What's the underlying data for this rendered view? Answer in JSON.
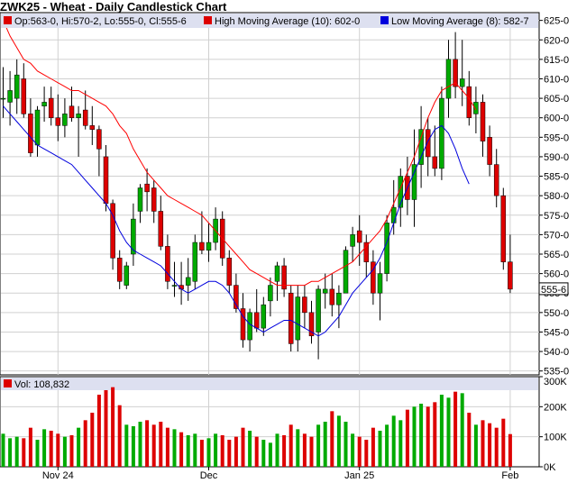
{
  "chart_data": {
    "type": "candlestick",
    "title": "ZWK25 - Wheat - Daily Candlestick Chart",
    "legend": {
      "ohlc": "Op:563-0, Hi:570-2, Lo:555-0, Cl:555-6",
      "high_ma": "High Moving Average (10): 602-0",
      "low_ma": "Low Moving Average (8): 582-7",
      "volume": "Vol: 108,832"
    },
    "colors": {
      "up": "#00aa00",
      "down": "#dd0000",
      "high_ma": "#ff0000",
      "low_ma": "#0000dd",
      "grid": "#d0d0d0",
      "panel": "#ffffff",
      "legend_bg": "#dde0f0"
    },
    "last_price_label": "555-6",
    "price_axis": {
      "min": 534,
      "max": 627,
      "ticks": [
        "535-0",
        "540-0",
        "545-0",
        "550-0",
        "555-0",
        "560-0",
        "565-0",
        "570-0",
        "575-0",
        "580-0",
        "585-0",
        "590-0",
        "595-0",
        "600-0",
        "605-0",
        "610-0",
        "615-0",
        "620-0",
        "625-0"
      ]
    },
    "volume_axis": {
      "min": 0,
      "max": 300000,
      "ticks": [
        {
          "v": 0,
          "label": "0K"
        },
        {
          "v": 100000,
          "label": "100K"
        },
        {
          "v": 200000,
          "label": "200K"
        },
        {
          "v": 300000,
          "label": "300K"
        }
      ]
    },
    "x_labels": [
      {
        "index": 8,
        "label": "Nov 24"
      },
      {
        "index": 30,
        "label": "Dec"
      },
      {
        "index": 52,
        "label": "Jan 25"
      },
      {
        "index": 74,
        "label": "Feb"
      }
    ],
    "bars": [
      {
        "o": 605,
        "h": 613,
        "l": 600,
        "c": 605,
        "v": 110000
      },
      {
        "o": 604,
        "h": 612,
        "l": 598,
        "c": 607,
        "v": 95000
      },
      {
        "o": 605,
        "h": 615,
        "l": 601,
        "c": 611,
        "v": 100000
      },
      {
        "o": 610,
        "h": 614,
        "l": 600,
        "c": 601,
        "v": 95000
      },
      {
        "o": 601,
        "h": 605,
        "l": 590,
        "c": 591,
        "v": 130000
      },
      {
        "o": 593,
        "h": 603,
        "l": 590,
        "c": 602,
        "v": 90000
      },
      {
        "o": 603,
        "h": 608,
        "l": 599,
        "c": 604,
        "v": 125000
      },
      {
        "o": 605,
        "h": 608,
        "l": 598,
        "c": 600,
        "v": 120000
      },
      {
        "o": 600,
        "h": 606,
        "l": 594,
        "c": 598,
        "v": 110000
      },
      {
        "o": 598,
        "h": 605,
        "l": 595,
        "c": 601,
        "v": 100000
      },
      {
        "o": 603,
        "h": 608,
        "l": 599,
        "c": 600,
        "v": 105000
      },
      {
        "o": 600,
        "h": 603,
        "l": 590,
        "c": 601,
        "v": 130000
      },
      {
        "o": 602,
        "h": 607,
        "l": 597,
        "c": 598,
        "v": 155000
      },
      {
        "o": 598,
        "h": 603,
        "l": 593,
        "c": 597,
        "v": 180000
      },
      {
        "o": 597,
        "h": 598,
        "l": 585,
        "c": 592,
        "v": 240000
      },
      {
        "o": 590,
        "h": 593,
        "l": 576,
        "c": 578,
        "v": 255000
      },
      {
        "o": 578,
        "h": 579,
        "l": 561,
        "c": 564,
        "v": 265000
      },
      {
        "o": 564,
        "h": 566,
        "l": 556,
        "c": 558,
        "v": 205000
      },
      {
        "o": 557,
        "h": 563,
        "l": 556,
        "c": 562,
        "v": 140000
      },
      {
        "o": 565,
        "h": 578,
        "l": 562,
        "c": 574,
        "v": 135000
      },
      {
        "o": 576,
        "h": 583,
        "l": 573,
        "c": 582,
        "v": 150000
      },
      {
        "o": 583,
        "h": 587,
        "l": 576,
        "c": 581,
        "v": 155000
      },
      {
        "o": 582,
        "h": 584,
        "l": 573,
        "c": 576,
        "v": 140000
      },
      {
        "o": 576,
        "h": 580,
        "l": 566,
        "c": 567,
        "v": 150000
      },
      {
        "o": 567,
        "h": 570,
        "l": 556,
        "c": 558,
        "v": 130000
      },
      {
        "o": 557,
        "h": 563,
        "l": 554,
        "c": 557,
        "v": 125000
      },
      {
        "o": 557,
        "h": 563,
        "l": 552,
        "c": 556,
        "v": 115000
      },
      {
        "o": 557,
        "h": 564,
        "l": 553,
        "c": 559,
        "v": 105000
      },
      {
        "o": 558,
        "h": 570,
        "l": 556,
        "c": 568,
        "v": 110000
      },
      {
        "o": 568,
        "h": 576,
        "l": 565,
        "c": 566,
        "v": 90000
      },
      {
        "o": 566,
        "h": 573,
        "l": 563,
        "c": 568,
        "v": 95000
      },
      {
        "o": 568,
        "h": 577,
        "l": 566,
        "c": 574,
        "v": 110000
      },
      {
        "o": 574,
        "h": 576,
        "l": 562,
        "c": 564,
        "v": 105000
      },
      {
        "o": 564,
        "h": 566,
        "l": 555,
        "c": 557,
        "v": 90000
      },
      {
        "o": 557,
        "h": 560,
        "l": 550,
        "c": 551,
        "v": 100000
      },
      {
        "o": 551,
        "h": 555,
        "l": 541,
        "c": 543,
        "v": 130000
      },
      {
        "o": 543,
        "h": 551,
        "l": 540,
        "c": 550,
        "v": 120000
      },
      {
        "o": 550,
        "h": 556,
        "l": 545,
        "c": 546,
        "v": 100000
      },
      {
        "o": 546,
        "h": 554,
        "l": 544,
        "c": 552,
        "v": 90000
      },
      {
        "o": 553,
        "h": 559,
        "l": 549,
        "c": 557,
        "v": 80000
      },
      {
        "o": 558,
        "h": 563,
        "l": 553,
        "c": 562,
        "v": 110000
      },
      {
        "o": 562,
        "h": 564,
        "l": 554,
        "c": 556,
        "v": 105000
      },
      {
        "o": 555,
        "h": 557,
        "l": 540,
        "c": 542,
        "v": 140000
      },
      {
        "o": 543,
        "h": 557,
        "l": 540,
        "c": 554,
        "v": 125000
      },
      {
        "o": 554,
        "h": 557,
        "l": 546,
        "c": 550,
        "v": 110000
      },
      {
        "o": 550,
        "h": 553,
        "l": 542,
        "c": 544,
        "v": 100000
      },
      {
        "o": 545,
        "h": 557,
        "l": 538,
        "c": 556,
        "v": 140000
      },
      {
        "o": 555,
        "h": 560,
        "l": 551,
        "c": 556,
        "v": 150000
      },
      {
        "o": 556,
        "h": 560,
        "l": 549,
        "c": 552,
        "v": 185000
      },
      {
        "o": 552,
        "h": 557,
        "l": 546,
        "c": 555,
        "v": 170000
      },
      {
        "o": 555,
        "h": 567,
        "l": 555,
        "c": 566,
        "v": 150000
      },
      {
        "o": 567,
        "h": 572,
        "l": 563,
        "c": 570,
        "v": 110000
      },
      {
        "o": 571,
        "h": 575,
        "l": 562,
        "c": 568,
        "v": 100000
      },
      {
        "o": 568,
        "h": 570,
        "l": 559,
        "c": 563,
        "v": 90000
      },
      {
        "o": 563,
        "h": 566,
        "l": 552,
        "c": 555,
        "v": 130000
      },
      {
        "o": 555,
        "h": 563,
        "l": 548,
        "c": 560,
        "v": 120000
      },
      {
        "o": 560,
        "h": 575,
        "l": 558,
        "c": 573,
        "v": 140000
      },
      {
        "o": 573,
        "h": 584,
        "l": 570,
        "c": 577,
        "v": 170000
      },
      {
        "o": 577,
        "h": 587,
        "l": 572,
        "c": 585,
        "v": 155000
      },
      {
        "o": 585,
        "h": 590,
        "l": 575,
        "c": 579,
        "v": 190000
      },
      {
        "o": 579,
        "h": 597,
        "l": 572,
        "c": 588,
        "v": 200000
      },
      {
        "o": 588,
        "h": 603,
        "l": 582,
        "c": 597,
        "v": 210000
      },
      {
        "o": 597,
        "h": 600,
        "l": 585,
        "c": 590,
        "v": 200000
      },
      {
        "o": 590,
        "h": 598,
        "l": 585,
        "c": 587,
        "v": 215000
      },
      {
        "o": 587,
        "h": 608,
        "l": 584,
        "c": 605,
        "v": 240000
      },
      {
        "o": 605,
        "h": 620,
        "l": 600,
        "c": 615,
        "v": 230000
      },
      {
        "o": 615,
        "h": 622,
        "l": 605,
        "c": 608,
        "v": 250000
      },
      {
        "o": 608,
        "h": 620,
        "l": 603,
        "c": 610,
        "v": 245000
      },
      {
        "o": 608,
        "h": 612,
        "l": 598,
        "c": 600,
        "v": 180000
      },
      {
        "o": 601,
        "h": 608,
        "l": 596,
        "c": 604,
        "v": 140000
      },
      {
        "o": 604,
        "h": 606,
        "l": 590,
        "c": 594,
        "v": 155000
      },
      {
        "o": 595,
        "h": 598,
        "l": 585,
        "c": 588,
        "v": 145000
      },
      {
        "o": 588,
        "h": 592,
        "l": 577,
        "c": 580,
        "v": 130000
      },
      {
        "o": 580,
        "h": 582,
        "l": 561,
        "c": 563,
        "v": 160000
      },
      {
        "o": 563,
        "h": 570,
        "l": 555,
        "c": 556,
        "v": 108832
      }
    ],
    "high_ma": [
      625,
      621,
      618,
      615,
      614,
      612,
      611,
      610,
      609,
      608,
      607,
      607,
      606,
      605,
      604,
      603,
      601,
      598,
      596,
      592,
      589,
      586,
      584,
      582,
      580,
      579,
      578,
      577,
      576,
      575,
      573,
      571,
      569,
      567,
      565,
      563,
      561,
      560,
      559,
      558,
      557,
      557,
      557,
      557,
      557,
      558,
      558,
      559,
      560,
      561,
      562,
      563,
      565,
      567,
      569,
      571,
      574,
      578,
      582,
      586,
      590,
      595,
      600,
      604,
      607,
      608,
      609,
      607,
      605,
      602
    ],
    "low_ma": [
      603,
      601,
      599,
      597,
      595,
      593,
      592,
      591,
      590,
      589,
      588,
      586,
      584,
      582,
      580,
      578,
      575,
      571,
      568,
      566,
      565,
      564,
      563,
      562,
      560,
      558,
      556,
      555,
      556,
      557,
      558,
      558,
      557,
      555,
      552,
      549,
      547,
      546,
      545,
      546,
      547,
      548,
      548,
      547,
      546,
      545,
      544,
      545,
      547,
      549,
      552,
      555,
      557,
      559,
      561,
      564,
      568,
      573,
      578,
      582,
      586,
      590,
      594,
      597,
      598,
      596,
      592,
      587,
      583
    ]
  }
}
